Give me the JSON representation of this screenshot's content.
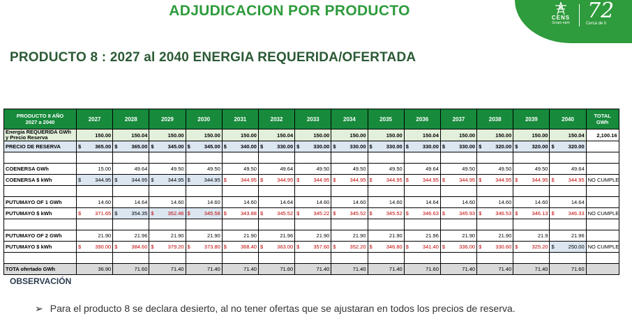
{
  "header": {
    "title": "ADJUDICACION POR PRODUCTO",
    "subtitle": "PRODUCTO 8 : 2027 al 2040 ENERGIA REQUERIDA/OFERTADA"
  },
  "logo": {
    "brand": "CENS",
    "group": "Grupo·epm",
    "anniversary": "72",
    "tagline": "Cerca de ti",
    "color": "#2e9b3c"
  },
  "table": {
    "header_product_line1": "PRODUCTO 8 AÑO",
    "header_product_line2": "2027 a 2040",
    "years": [
      "2027",
      "2028",
      "2029",
      "2030",
      "2031",
      "2032",
      "2033",
      "2034",
      "2035",
      "2036",
      "2037",
      "2038",
      "2039",
      "2040"
    ],
    "total_header_line1": "TOTAL",
    "total_header_line2": "GWh",
    "energia": {
      "label_line1": "Energia REQUERIDA GWh",
      "label_line2": "y Precio Reserva",
      "values": [
        "150.00",
        "150.04",
        "150.00",
        "150.00",
        "150.00",
        "150.04",
        "150.00",
        "150.00",
        "150.00",
        "150.04",
        "150.00",
        "150.00",
        "150.00",
        "150.04"
      ],
      "total": "2,100.16"
    },
    "precio": {
      "label": "PRECIO DE RESERVA",
      "currency": "$",
      "values": [
        "365.00",
        "365.00",
        "345.00",
        "345.00",
        "340.00",
        "330.00",
        "330.00",
        "330.00",
        "330.00",
        "330.00",
        "330.00",
        "320.00",
        "320.00",
        "320.00"
      ]
    },
    "coenersa_gwh": {
      "label": "COENERSA GWh",
      "values": [
        "15.00",
        "49.64",
        "49.50",
        "49.50",
        "49.50",
        "49.64",
        "49.50",
        "49.50",
        "49.50",
        "49.64",
        "49.50",
        "49.50",
        "49.50",
        "49.64"
      ]
    },
    "coenersa_kwh": {
      "label": "COENERSA $ kWh",
      "currency": "$",
      "values": [
        "344.95",
        "344.95",
        "344.95",
        "344.95",
        "344.95",
        "344.95",
        "344.95",
        "344.95",
        "344.95",
        "344.95",
        "344.95",
        "344.95",
        "344.95",
        "344.95"
      ],
      "status": "NO CUMPLE"
    },
    "putumayo1_gwh": {
      "label": "PUTUMAYO OF 1 GWh",
      "values": [
        "14.60",
        "14.64",
        "14.60",
        "14.60",
        "14.60",
        "14.64",
        "14.60",
        "14.60",
        "14.60",
        "14.64",
        "14.60",
        "14.60",
        "14.60",
        "14.64"
      ]
    },
    "putumayo1_kwh": {
      "label": "PUTUMAYO $ kWh",
      "currency": "$",
      "values": [
        "371.65",
        "354.35",
        "352.46",
        "345.58",
        "343.88",
        "345.52",
        "345.22",
        "345.52",
        "345.52",
        "346.63",
        "345.93",
        "346.53",
        "346.13",
        "346.33"
      ],
      "status": "NO CUMPLE"
    },
    "putumayo2_gwh": {
      "label": "PUTUMAYO OF 2 GWh",
      "values": [
        "21.90",
        "21.96",
        "21.90",
        "21.90",
        "21.90",
        "21.96",
        "21.90",
        "21.90",
        "21.90",
        "21.96",
        "21.90",
        "21.90",
        "21.9",
        "21.96"
      ]
    },
    "putumayo2_kwh": {
      "label": "PUTUMAYO $ kWh",
      "currency": "$",
      "values": [
        "390.00",
        "384.60",
        "379.20",
        "373.80",
        "368.40",
        "363.00",
        "357.60",
        "352.20",
        "346.80",
        "341.40",
        "336.00",
        "330.60",
        "325.20",
        "250.00"
      ],
      "status": "NO CUMPLE"
    },
    "total": {
      "label": "TOTA ofertado GWh",
      "values": [
        "36.90",
        "71.60",
        "71.40",
        "71.40",
        "71.40",
        "71.60",
        "71.40",
        "71.40",
        "71.40",
        "71.60",
        "71.40",
        "71.40",
        "71.40",
        "71.60"
      ]
    }
  },
  "observation": {
    "heading": "OBSERVACIÓN",
    "bullet_symbol": "➢",
    "text": "Para el producto 8 se declara desierto, al no tener ofertas que se ajustaran en todos los precios de reserva."
  }
}
